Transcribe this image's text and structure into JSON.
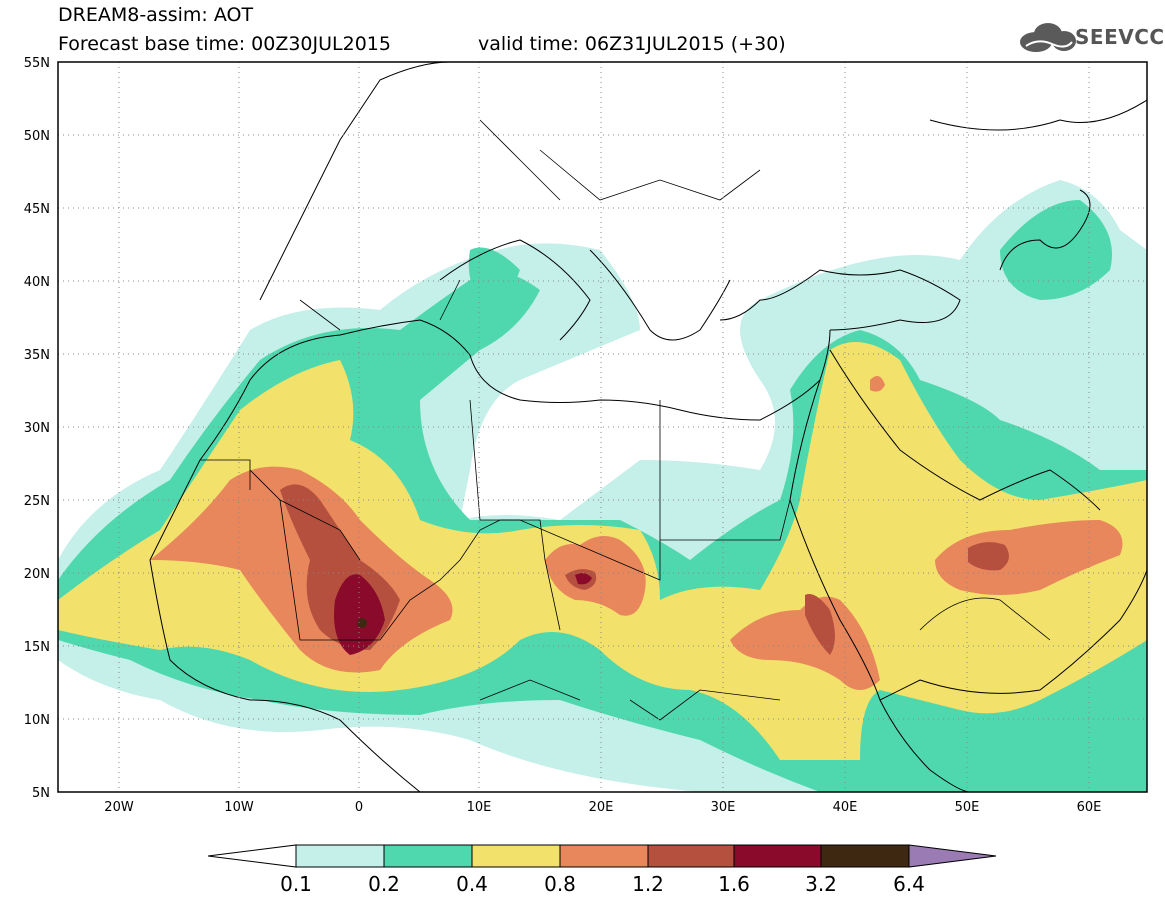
{
  "header": {
    "title_line1": "DREAM8-assim: AOT",
    "title_line2": "Forecast base time: 00Z30JUL2015",
    "valid_time": "valid time: 06Z31JUL2015 (+30)",
    "logo_text": "SEEVCCC"
  },
  "map": {
    "lon_range": [
      -25,
      65
    ],
    "lat_range": [
      5,
      55
    ],
    "lat_labels": [
      "55N",
      "50N",
      "45N",
      "40N",
      "35N",
      "30N",
      "25N",
      "20N",
      "15N",
      "10N",
      "5N"
    ],
    "lon_labels": [
      "20W",
      "10W",
      "0",
      "10E",
      "20E",
      "30E",
      "40E",
      "50E",
      "60E"
    ],
    "gridlines": "dotted"
  },
  "colorbar": {
    "labels": [
      "0.1",
      "0.2",
      "0.4",
      "0.8",
      "1.2",
      "1.6",
      "3.2",
      "6.4"
    ],
    "colors": [
      "#c5efe9",
      "#4fd8ad",
      "#f2e16a",
      "#e8865c",
      "#b5503f",
      "#8a0a2c",
      "#3e2812",
      "#9b7bb3"
    ]
  }
}
